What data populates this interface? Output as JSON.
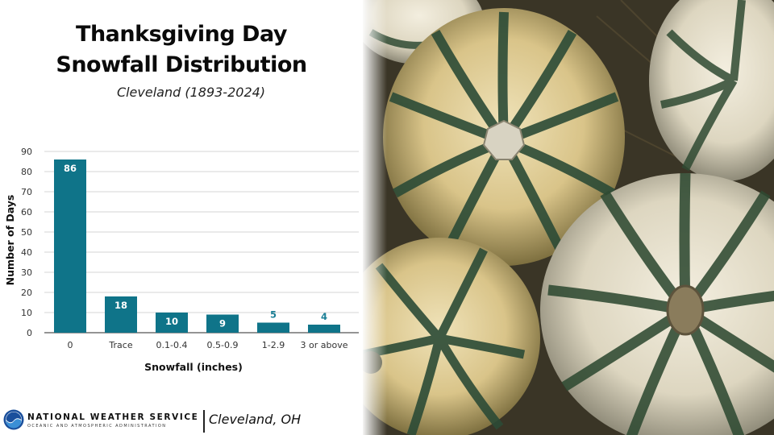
{
  "header": {
    "title_line1": "Thanksgiving Day",
    "title_line2": "Snowfall Distribution",
    "subtitle": "Cleveland (1893-2024)"
  },
  "chart_data": {
    "type": "bar",
    "categories": [
      "0",
      "Trace",
      "0.1-0.4",
      "0.5-0.9",
      "1-2.9",
      "3 or above"
    ],
    "values": [
      86,
      18,
      10,
      9,
      5,
      4
    ],
    "xlabel": "Snowfall (inches)",
    "ylabel": "Number of Days",
    "ylim": [
      0,
      90
    ],
    "yticks": [
      0,
      10,
      20,
      30,
      40,
      50,
      60,
      70,
      80,
      90
    ],
    "grid": true,
    "bar_color": "#0f7489",
    "label_inside_color": "#ffffff",
    "label_outside_color": "#1a7f96"
  },
  "footer": {
    "agency": "NATIONAL WEATHER SERVICE",
    "agency_sub": "OCEANIC AND ATMOSPHERIC ADMINISTRATION",
    "office": "Cleveland, OH"
  },
  "photo": {
    "subject": "pumpkin-photo"
  }
}
